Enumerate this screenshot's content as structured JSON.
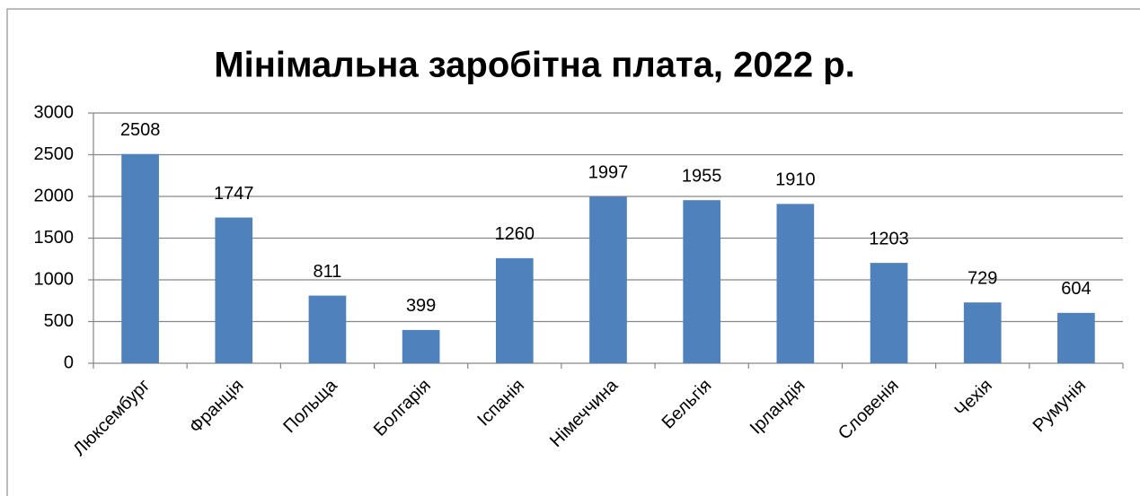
{
  "chart_data": {
    "type": "bar",
    "title": "Мінімальна заробітна плата, 2022 р.",
    "categories": [
      "Люксембург",
      "Франція",
      "Польща",
      "Болгарія",
      "Іспанія",
      "Німеччина",
      "Бельгія",
      "Ірландія",
      "Словенія",
      "Чехія",
      "Румунія"
    ],
    "values": [
      2508,
      1747,
      811,
      399,
      1260,
      1997,
      1955,
      1910,
      1203,
      729,
      604
    ],
    "color": "#4f81bd",
    "ylim": [
      0,
      3000
    ],
    "yticks": [
      0,
      500,
      1000,
      1500,
      2000,
      2500,
      3000
    ],
    "grid": true
  }
}
